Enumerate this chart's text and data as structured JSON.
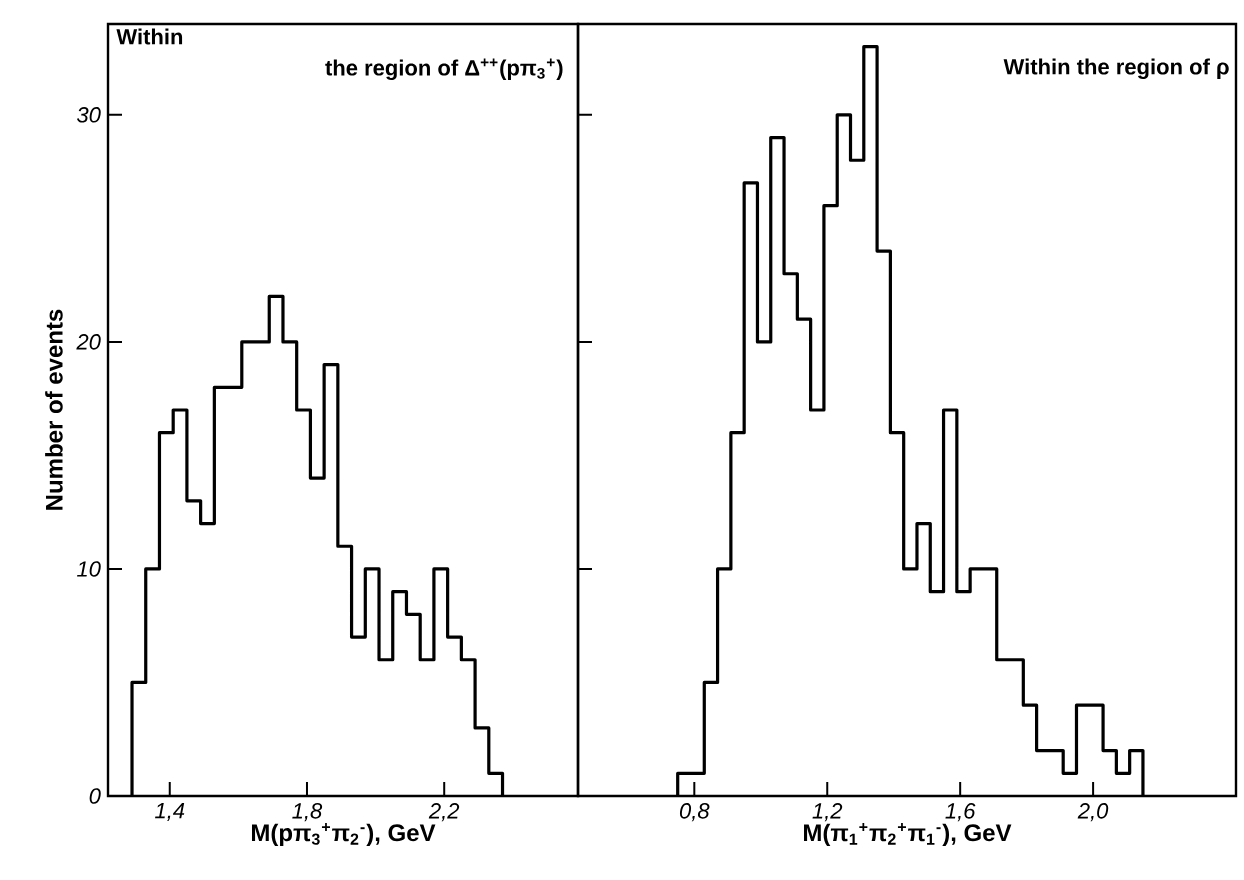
{
  "chart_data": [
    {
      "type": "histogram",
      "ylabel": "Number of events",
      "xlabel": "M(pπ$_{3}$$^{+}$π$_{2}$$^{-}$), GeV",
      "annotations": [
        "Within",
        "the region of Δ$^{++}$(pπ$_{3}$$^{+}$)"
      ],
      "bins": [
        1.29,
        1.33,
        1.37,
        1.41,
        1.45,
        1.49,
        1.53,
        1.57,
        1.61,
        1.65,
        1.69,
        1.73,
        1.77,
        1.81,
        1.85,
        1.89,
        1.93,
        1.97,
        2.01,
        2.05,
        2.09,
        2.13,
        2.17,
        2.21,
        2.25,
        2.29,
        2.33,
        2.37
      ],
      "values": [
        5,
        10,
        16,
        17,
        13,
        12,
        18,
        18,
        20,
        20,
        22,
        20,
        17,
        14,
        19,
        11,
        7,
        10,
        6,
        9,
        8,
        6,
        10,
        7,
        6,
        3,
        1
      ],
      "color": "#000000",
      "xlim": [
        1.22,
        2.59
      ],
      "ylim": [
        0,
        34
      ],
      "xticks": [
        {
          "value": 1.4,
          "label": "1,4"
        },
        {
          "value": 1.8,
          "label": "1,8"
        },
        {
          "value": 2.2,
          "label": "2,2"
        }
      ],
      "yticks": [
        0,
        10,
        20,
        30
      ]
    },
    {
      "type": "histogram",
      "xlabel": "M(π$_{1}$$^{+}$π$_{2}$$^{+}$π$_{1}$$^{-}$), GeV",
      "annotations": [
        "Within the region of ρ"
      ],
      "bins": [
        0.75,
        0.79,
        0.83,
        0.87,
        0.91,
        0.95,
        0.99,
        1.03,
        1.07,
        1.11,
        1.15,
        1.19,
        1.23,
        1.27,
        1.31,
        1.35,
        1.39,
        1.43,
        1.47,
        1.51,
        1.55,
        1.59,
        1.63,
        1.67,
        1.71,
        1.75,
        1.79,
        1.83,
        1.87,
        1.91,
        1.95,
        1.99,
        2.03,
        2.07,
        2.11,
        2.15
      ],
      "values": [
        1,
        1,
        5,
        10,
        16,
        27,
        20,
        29,
        23,
        21,
        17,
        26,
        30,
        28,
        33,
        24,
        16,
        10,
        12,
        9,
        17,
        9,
        10,
        10,
        6,
        6,
        4,
        2,
        2,
        1,
        4,
        4,
        2,
        1,
        2
      ],
      "color": "#000000",
      "xlim": [
        0.45,
        2.43
      ],
      "ylim": [
        0,
        34
      ],
      "xticks": [
        {
          "value": 0.8,
          "label": "0,8"
        },
        {
          "value": 1.2,
          "label": "1,2"
        },
        {
          "value": 1.6,
          "label": "1,6"
        },
        {
          "value": 2.0,
          "label": "2,0"
        }
      ],
      "yticks": [
        {
          "value": 10,
          "label": null
        },
        {
          "value": 20,
          "label": null
        },
        {
          "value": 30,
          "label": null
        }
      ],
      "tick_labels": "x"
    }
  ]
}
